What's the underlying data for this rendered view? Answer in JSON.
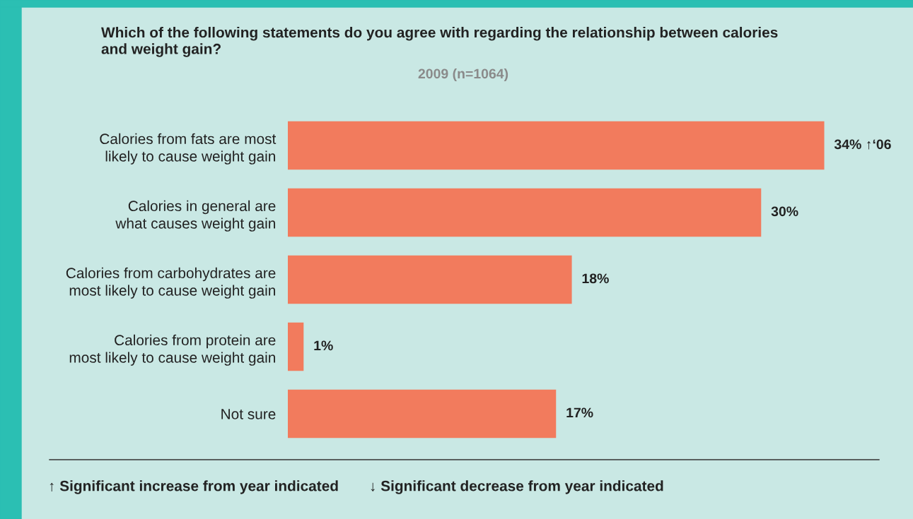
{
  "chart_data": {
    "type": "bar",
    "orientation": "horizontal",
    "title": "Which of the following statements do you agree with regarding the relationship between calories\nand weight gain?",
    "subtitle": "2009 (n=1064)",
    "categories": [
      "Calories from fats are most\nlikely to cause weight gain",
      "Calories in general are\nwhat causes weight gain",
      "Calories from carbohydrates are\nmost likely to cause weight gain",
      "Calories from protein are\nmost likely to cause weight gain",
      "Not sure"
    ],
    "values": [
      34,
      30,
      18,
      1,
      17
    ],
    "color": "#f27b5d",
    "value_labels": [
      "34% ↑‘06",
      "30%",
      "18%",
      "1%",
      "17%"
    ],
    "tick_labels": "y",
    "annotations": [
      "↑ Significant increase from year indicated",
      "↓ Significant decrease from year indicated"
    ]
  }
}
